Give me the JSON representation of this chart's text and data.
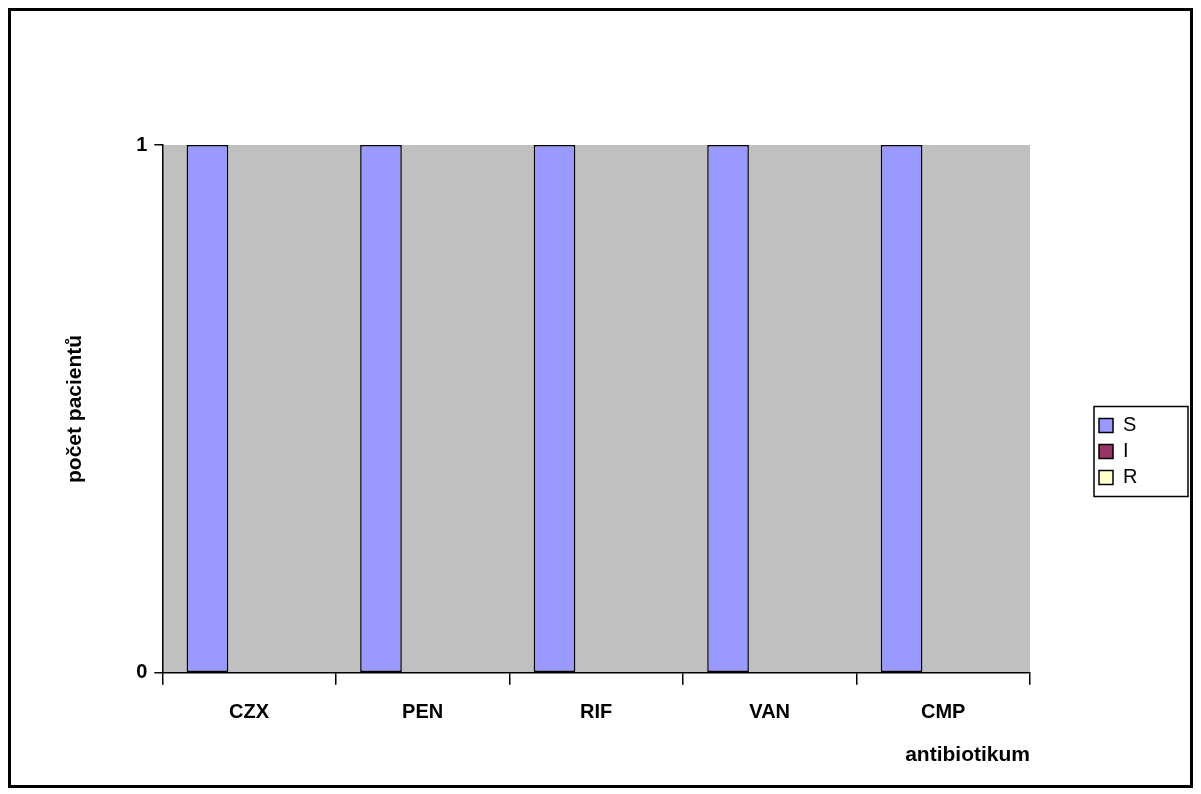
{
  "chart_data": {
    "type": "bar",
    "categories": [
      "CZX",
      "PEN",
      "RIF",
      "VAN",
      "CMP"
    ],
    "series": [
      {
        "name": "S",
        "color": "#9999ff",
        "values": [
          1,
          1,
          1,
          1,
          1
        ]
      },
      {
        "name": "I",
        "color": "#993366",
        "values": [
          0,
          0,
          0,
          0,
          0
        ]
      },
      {
        "name": "R",
        "color": "#ffffcc",
        "values": [
          0,
          0,
          0,
          0,
          0
        ]
      }
    ],
    "xlabel": "antibiotikum",
    "ylabel": "počet pacientů",
    "ylim": [
      0,
      1
    ],
    "yticks": [
      0,
      1
    ],
    "legend": "right"
  }
}
